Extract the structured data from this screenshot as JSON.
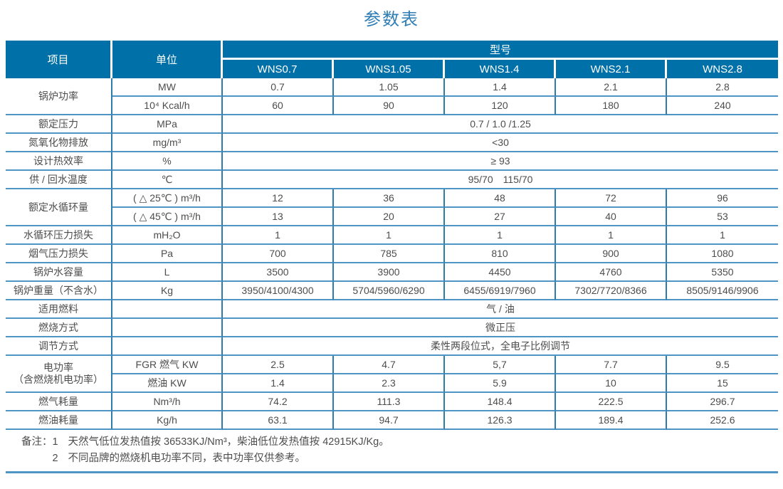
{
  "title": "参数表",
  "colors": {
    "header_bg": "#0070A8",
    "grid_vertical": "#2E7CAE",
    "grid_horizontal": "#4E94C4",
    "text": "#4D4D4D",
    "title_text": "#2E7EB5",
    "header_text": "#FFFFFF"
  },
  "table": {
    "header": {
      "item_label": "项目",
      "unit_label": "单位",
      "model_group_label": "型号",
      "models": [
        "WNS0.7",
        "WNS1.05",
        "WNS1.4",
        "WNS2.1",
        "WNS2.8"
      ]
    },
    "rows": [
      {
        "item": "锅炉功率",
        "rowspan": 2,
        "unit": "MW",
        "values": [
          "0.7",
          "1.05",
          "1.4",
          "2.1",
          "2.8"
        ]
      },
      {
        "unit": "10⁴ Kcal/h",
        "values": [
          "60",
          "90",
          "120",
          "180",
          "240"
        ]
      },
      {
        "item": "额定压力",
        "unit": "MPa",
        "span": "0.7 / 1.0 /1.25"
      },
      {
        "item": "氮氧化物排放",
        "unit": "mg/m³",
        "span": "<30"
      },
      {
        "item": "设计热效率",
        "unit": "%",
        "span": "≥ 93"
      },
      {
        "item": "供 / 回水温度",
        "unit": "℃",
        "span": "95/70　115/70"
      },
      {
        "item": "额定水循环量",
        "rowspan": 2,
        "unit": "( △ 25℃ ) m³/h",
        "values": [
          "12",
          "36",
          "48",
          "72",
          "96"
        ]
      },
      {
        "unit": "( △ 45℃ ) m³/h",
        "values": [
          "13",
          "20",
          "27",
          "40",
          "53"
        ]
      },
      {
        "item": "水循环压力损失",
        "unit": "mH₂O",
        "values": [
          "1",
          "1",
          "1",
          "1",
          "1"
        ]
      },
      {
        "item": "烟气压力损失",
        "unit": "Pa",
        "values": [
          "700",
          "785",
          "810",
          "900",
          "1080"
        ]
      },
      {
        "item": "锅炉水容量",
        "unit": "L",
        "values": [
          "3500",
          "3900",
          "4450",
          "4760",
          "5350"
        ]
      },
      {
        "item": "锅炉重量（不含水）",
        "unit": "Kg",
        "values": [
          "3950/4100/4300",
          "5704/5960/6290",
          "6455/6919/7960",
          "7302/7720/8366",
          "8505/9146/9906"
        ]
      },
      {
        "item": "适用燃料",
        "unit": "",
        "span": "气 / 油"
      },
      {
        "item": "燃烧方式",
        "unit": "",
        "span": "微正压"
      },
      {
        "item": "调节方式",
        "unit": "",
        "span": "柔性两段位式，全电子比例调节"
      },
      {
        "item": "电功率\n（含燃烧机电功率）",
        "rowspan": 2,
        "unit": "FGR 燃气 KW",
        "values": [
          "2.5",
          "4.7",
          "5,7",
          "7.7",
          "9.5"
        ]
      },
      {
        "unit": "燃油 KW",
        "values": [
          "1.4",
          "2.3",
          "5.9",
          "10",
          "15"
        ]
      },
      {
        "item": "燃气耗量",
        "unit": "Nm³/h",
        "values": [
          "74.2",
          "111.3",
          "148.4",
          "222.5",
          "296.7"
        ]
      },
      {
        "item": "燃油耗量",
        "unit": "Kg/h",
        "values": [
          "63.1",
          "94.7",
          "126.3",
          "189.4",
          "252.6"
        ]
      }
    ]
  },
  "notes": {
    "label": "备注：",
    "items": [
      {
        "num": "1",
        "text": "天然气低位发热值按 36533KJ/Nm³，柴油低位发热值按 42915KJ/Kg。"
      },
      {
        "num": "2",
        "text": "不同品牌的燃烧机电功率不同，表中功率仅供参考。"
      }
    ]
  }
}
